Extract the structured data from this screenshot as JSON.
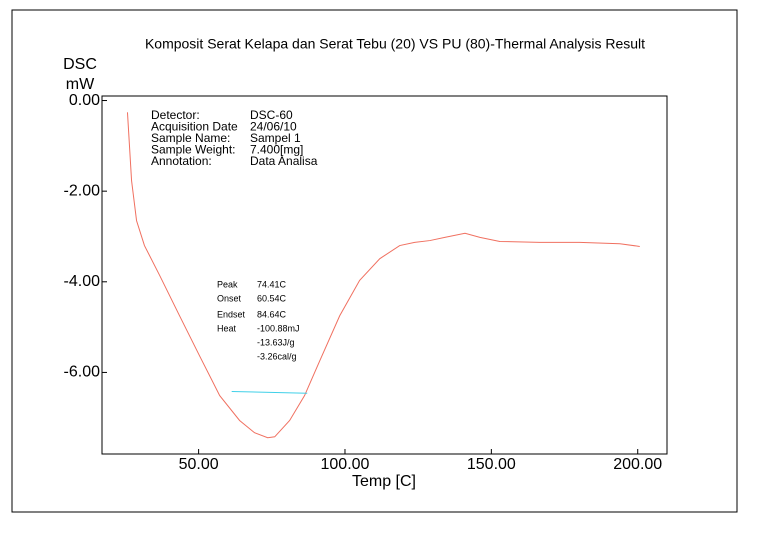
{
  "chart_data": {
    "type": "line",
    "title": "Komposit Serat Kelapa dan Serat Tebu (20) VS PU (80)-Thermal Analysis Result",
    "y_label_lines": [
      "DSC",
      "mW"
    ],
    "x_label": "Temp  [C]",
    "xlim": [
      17,
      210
    ],
    "ylim": [
      -7.8,
      0.1
    ],
    "xticks": [
      {
        "value": 50,
        "label": "50.00"
      },
      {
        "value": 100,
        "label": "100.00"
      },
      {
        "value": 150,
        "label": "150.00"
      },
      {
        "value": 200,
        "label": "200.00"
      }
    ],
    "yticks": [
      {
        "value": 0,
        "label": "0.00"
      },
      {
        "value": -2,
        "label": "-2.00"
      },
      {
        "value": -4,
        "label": "-4.00"
      },
      {
        "value": -6,
        "label": "-6.00"
      }
    ],
    "series": [
      {
        "color": "#f07060",
        "x": [
          25.7,
          27.1,
          28.8,
          31.5,
          36.7,
          43.5,
          50.3,
          57.2,
          64.0,
          69.1,
          73.6,
          76.0,
          81.1,
          86.2,
          91.4,
          98.2,
          105.0,
          111.9,
          118.7,
          123.8,
          129.0,
          134.1,
          141.0,
          146.1,
          152.9,
          166.5,
          180.2,
          193.9,
          200.7
        ],
        "values": [
          -0.26,
          -1.77,
          -2.65,
          -3.2,
          -3.86,
          -4.75,
          -5.63,
          -6.51,
          -7.06,
          -7.33,
          -7.44,
          -7.42,
          -7.06,
          -6.51,
          -5.74,
          -4.75,
          -3.97,
          -3.49,
          -3.2,
          -3.13,
          -3.09,
          -3.02,
          -2.93,
          -3.02,
          -3.11,
          -3.13,
          -3.13,
          -3.16,
          -3.22
        ]
      },
      {
        "color": "#40d0e8",
        "x": [
          61.3,
          87.1
        ],
        "values": [
          -6.42,
          -6.46
        ]
      }
    ],
    "info_labels": [
      "Detector:",
      "Acquisition Date",
      "Sample Name:",
      "Sample Weight:",
      "Annotation:"
    ],
    "info_values": [
      "DSC-60",
      "24/06/10",
      "Sampel 1",
      "7.400[mg]",
      "Data Analisa"
    ],
    "peak_labels": [
      "Peak",
      "Onset",
      "Endset",
      "Heat"
    ],
    "peak_values": [
      "74.41C",
      "60.54C",
      "84.64C",
      "-100.88mJ",
      "-13.63J/g",
      "-3.26cal/g"
    ]
  }
}
